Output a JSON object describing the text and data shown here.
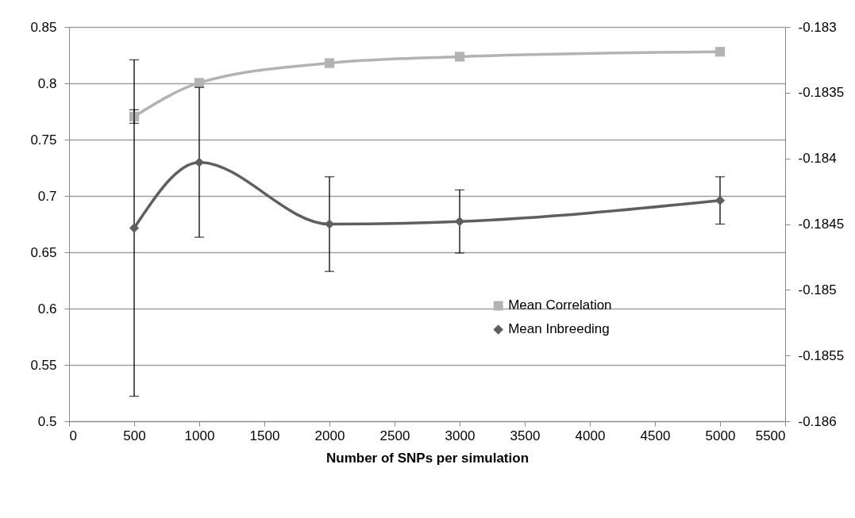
{
  "chart_data": {
    "type": "line",
    "xlabel": "Number of SNPs per simulation",
    "x": [
      500,
      1000,
      2000,
      3000,
      5000
    ],
    "xlim": [
      0,
      5500
    ],
    "xticks": [
      0,
      500,
      1000,
      1500,
      2000,
      2500,
      3000,
      3500,
      4000,
      4500,
      5000,
      5500
    ],
    "ylim": [
      0.5,
      0.85
    ],
    "yticks": [
      0.5,
      0.55,
      0.6,
      0.65,
      0.7,
      0.75,
      0.8,
      0.85
    ],
    "y2lim": [
      -0.186,
      -0.183
    ],
    "y2ticks": [
      -0.186,
      -0.1855,
      -0.185,
      -0.1845,
      -0.184,
      -0.1835,
      -0.183
    ],
    "series": [
      {
        "name": "Mean Correlation",
        "color": "#b3b3b3",
        "marker": "square",
        "values": [
          0.7705,
          0.8004,
          0.8179,
          0.8236,
          0.828
        ],
        "errors": [
          0.006,
          null,
          null,
          null,
          null
        ]
      },
      {
        "name": "Mean Inbreeding",
        "color": "#5f5f5f",
        "marker": "diamond",
        "axis": "y2",
        "values": [
          -0.18453,
          -0.18403,
          -0.1845,
          -0.18448,
          -0.18432
        ],
        "errors": [
          0.00128,
          0.00057,
          0.00036,
          0.00024,
          0.00018
        ]
      }
    ],
    "grid": "y",
    "legend": "bottom right"
  }
}
